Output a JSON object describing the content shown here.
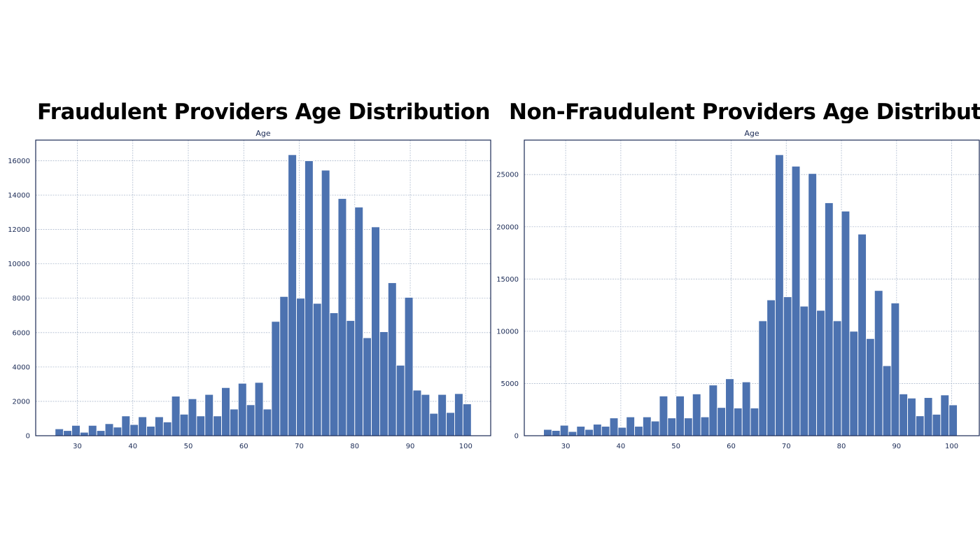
{
  "colors": {
    "bar": "#4c72b0",
    "bar_edge": "#ffffff",
    "grid": "#b0bdd0",
    "frame": "#1a2a55",
    "text": "#1a2a55"
  },
  "chart_data": [
    {
      "type": "bar",
      "title": "Fraudulent Providers Age Distribution",
      "xlabel": "Age",
      "ylabel": "",
      "bin_starts": [
        26,
        27.5,
        29,
        30.5,
        32,
        33.5,
        35,
        36.5,
        38,
        39.5,
        41,
        42.5,
        44,
        45.5,
        47,
        48.5,
        50,
        51.5,
        53,
        54.5,
        56,
        57.5,
        59,
        60.5,
        62,
        63.5,
        65,
        66.5,
        68,
        69.5,
        71,
        72.5,
        74,
        75.5,
        77,
        78.5,
        80,
        81.5,
        83,
        84.5,
        86,
        87.5,
        89,
        90.5,
        92,
        93.5,
        95,
        96.5,
        98,
        99.5
      ],
      "bin_width": 1.5,
      "values": [
        400,
        300,
        600,
        200,
        600,
        300,
        700,
        500,
        1150,
        650,
        1100,
        550,
        1100,
        800,
        2300,
        1250,
        2150,
        1150,
        2400,
        1150,
        2800,
        1550,
        3050,
        1800,
        3100,
        1550,
        6650,
        8100,
        16350,
        8000,
        16000,
        7700,
        15450,
        7150,
        13800,
        6700,
        13300,
        5700,
        12150,
        6050,
        8900,
        4100,
        8050,
        2650,
        2400,
        1300,
        2400,
        1350,
        2450,
        1850
      ],
      "xlim": [
        22.5,
        104.5
      ],
      "ylim": [
        0,
        17200
      ],
      "xticks": [
        30,
        40,
        50,
        60,
        70,
        80,
        90,
        100
      ],
      "yticks": [
        0,
        2000,
        4000,
        6000,
        8000,
        10000,
        12000,
        14000,
        16000
      ],
      "grid": true
    },
    {
      "type": "bar",
      "title": "Non-Fraudulent Providers Age Distribution",
      "xlabel": "Age",
      "ylabel": "",
      "bin_starts": [
        26,
        27.5,
        29,
        30.5,
        32,
        33.5,
        35,
        36.5,
        38,
        39.5,
        41,
        42.5,
        44,
        45.5,
        47,
        48.5,
        50,
        51.5,
        53,
        54.5,
        56,
        57.5,
        59,
        60.5,
        62,
        63.5,
        65,
        66.5,
        68,
        69.5,
        71,
        72.5,
        74,
        75.5,
        77,
        78.5,
        80,
        81.5,
        83,
        84.5,
        86,
        87.5,
        89,
        90.5,
        92,
        93.5,
        95,
        96.5,
        98,
        99.5
      ],
      "bin_width": 1.5,
      "values": [
        600,
        500,
        1000,
        400,
        900,
        600,
        1100,
        900,
        1700,
        800,
        1800,
        900,
        1800,
        1400,
        3800,
        1700,
        3800,
        1700,
        4000,
        1800,
        4850,
        2700,
        5450,
        2650,
        5150,
        2650,
        11000,
        13000,
        26900,
        13300,
        25800,
        12400,
        25100,
        12000,
        22300,
        11000,
        21500,
        10000,
        19300,
        9300,
        13900,
        6700,
        12700,
        4000,
        3600,
        1900,
        3650,
        2050,
        3900,
        2950
      ],
      "xlim": [
        22.5,
        105
      ],
      "ylim": [
        0,
        28300
      ],
      "xticks": [
        30,
        40,
        50,
        60,
        70,
        80,
        90,
        100
      ],
      "yticks": [
        0,
        5000,
        10000,
        15000,
        20000,
        25000
      ],
      "grid": true
    }
  ]
}
